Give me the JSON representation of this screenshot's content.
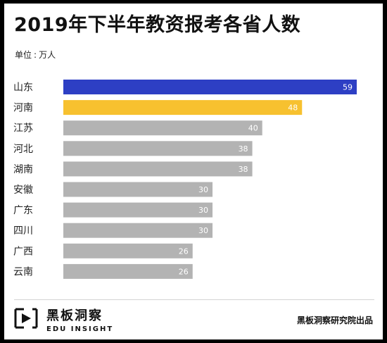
{
  "title": "2019年下半年教资报考各省人数",
  "unit_label": "单位",
  "unit_value": "万人",
  "footer": {
    "brand_cn": "黑板洞察",
    "brand_en": "EDU INSIGHT",
    "source": "黑板洞察研究院出品"
  },
  "colors": {
    "first": "#2d3fc4",
    "second": "#f7c12f",
    "rest": "#b3b3b3",
    "logo": "#111111"
  },
  "chart_data": {
    "type": "bar",
    "orientation": "horizontal",
    "title": "2019年下半年教资报考各省人数",
    "unit": "万人",
    "categories": [
      "山东",
      "河南",
      "江苏",
      "河北",
      "湖南",
      "安徽",
      "广东",
      "四川",
      "广西",
      "云南"
    ],
    "values": [
      59,
      48,
      40,
      38,
      38,
      30,
      30,
      30,
      26,
      26
    ],
    "xlim": [
      0,
      59
    ],
    "grid": false,
    "legend": "none"
  }
}
